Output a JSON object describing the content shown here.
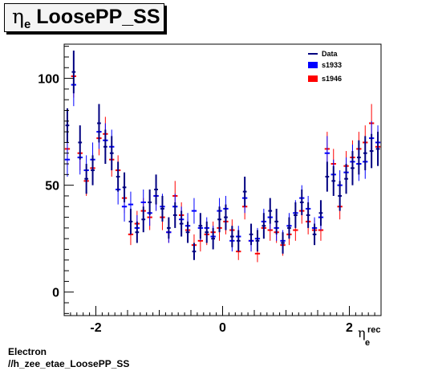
{
  "title": {
    "symbol": "η",
    "subscript": "e",
    "text": "LoosePP_SS"
  },
  "footer": {
    "line1": "Electron",
    "line2": "//h_zee_etae_LoosePP_SS"
  },
  "colors": {
    "s1933": "#0000ff",
    "s1946": "#ff0000",
    "data": "#000080",
    "frame": "#000000"
  },
  "chart_data": {
    "type": "scatter",
    "x_label": {
      "base": "η",
      "sup": "rec",
      "sub": "e"
    },
    "xlim": [
      -2.5,
      2.5
    ],
    "ylim": [
      -11,
      116
    ],
    "x_ticks": [
      -2,
      0,
      2
    ],
    "y_ticks": [
      0,
      50,
      100
    ],
    "x_tick_labels": [
      "-2",
      "0",
      "2"
    ],
    "y_tick_labels": [
      "0",
      "50",
      "100"
    ],
    "legend": {
      "position": "top-right",
      "entries": [
        "Data",
        "s1933",
        "s1946"
      ]
    },
    "x": [
      -2.45,
      -2.35,
      -2.25,
      -2.15,
      -2.05,
      -1.95,
      -1.85,
      -1.75,
      -1.65,
      -1.55,
      -1.45,
      -1.35,
      -1.25,
      -1.15,
      -1.05,
      -0.95,
      -0.85,
      -0.75,
      -0.65,
      -0.55,
      -0.45,
      -0.35,
      -0.25,
      -0.15,
      -0.05,
      0.05,
      0.15,
      0.25,
      0.35,
      0.45,
      0.55,
      0.65,
      0.75,
      0.85,
      0.95,
      1.05,
      1.15,
      1.25,
      1.35,
      1.45,
      1.55,
      1.65,
      1.75,
      1.85,
      1.95,
      2.05,
      2.15,
      2.25,
      2.35,
      2.45
    ],
    "series": [
      {
        "name": "Data",
        "values": [
          78,
          103,
          70,
          53,
          57,
          79,
          68,
          65,
          54,
          49,
          33,
          28,
          34,
          42,
          48,
          39,
          30,
          36,
          32,
          28,
          19,
          31,
          28,
          25,
          34,
          35,
          26,
          24,
          47,
          27,
          24,
          31,
          38,
          33,
          23,
          30,
          36,
          42,
          36,
          27,
          37,
          54,
          52,
          45,
          53,
          58,
          63,
          65,
          66,
          67
        ],
        "err": [
          8,
          10,
          8,
          7,
          7,
          9,
          8,
          8,
          7,
          7,
          6,
          5,
          6,
          6,
          7,
          6,
          5,
          6,
          6,
          5,
          4,
          6,
          5,
          5,
          6,
          6,
          5,
          5,
          7,
          5,
          5,
          6,
          6,
          6,
          5,
          5,
          6,
          6,
          6,
          5,
          6,
          7,
          7,
          7,
          7,
          8,
          8,
          8,
          8,
          8
        ]
      },
      {
        "name": "s1933",
        "values": [
          62,
          97,
          63,
          57,
          62,
          75,
          71,
          68,
          48,
          40,
          41,
          30,
          42,
          37,
          45,
          40,
          28,
          40,
          34,
          31,
          38,
          30,
          30,
          26,
          38,
          39,
          24,
          26,
          44,
          24,
          25,
          33,
          35,
          30,
          24,
          31,
          37,
          44,
          39,
          30,
          35,
          65,
          55,
          50,
          56,
          61,
          60,
          61,
          72,
          70
        ],
        "err": [
          8,
          10,
          8,
          7,
          8,
          8,
          8,
          8,
          7,
          7,
          6,
          6,
          6,
          6,
          7,
          6,
          5,
          6,
          6,
          6,
          6,
          6,
          5,
          5,
          6,
          6,
          5,
          5,
          7,
          5,
          5,
          6,
          6,
          6,
          5,
          6,
          6,
          6,
          6,
          5,
          6,
          8,
          7,
          7,
          7,
          8,
          8,
          8,
          8,
          8
        ]
      },
      {
        "name": "s1946",
        "values": [
          67,
          101,
          65,
          52,
          58,
          72,
          74,
          62,
          57,
          44,
          27,
          32,
          38,
          35,
          45,
          35,
          28,
          45,
          36,
          29,
          22,
          24,
          27,
          28,
          30,
          33,
          29,
          19,
          40,
          24,
          18,
          30,
          29,
          28,
          22,
          27,
          29,
          38,
          33,
          29,
          29,
          67,
          60,
          40,
          59,
          63,
          67,
          70,
          79,
          68
        ],
        "err": [
          8,
          10,
          8,
          7,
          7,
          8,
          8,
          8,
          7,
          7,
          5,
          6,
          6,
          6,
          7,
          6,
          5,
          7,
          6,
          5,
          5,
          5,
          5,
          5,
          6,
          6,
          5,
          4,
          6,
          5,
          4,
          5,
          5,
          5,
          5,
          5,
          5,
          6,
          6,
          5,
          5,
          8,
          7,
          6,
          7,
          8,
          8,
          8,
          9,
          8
        ]
      }
    ]
  }
}
